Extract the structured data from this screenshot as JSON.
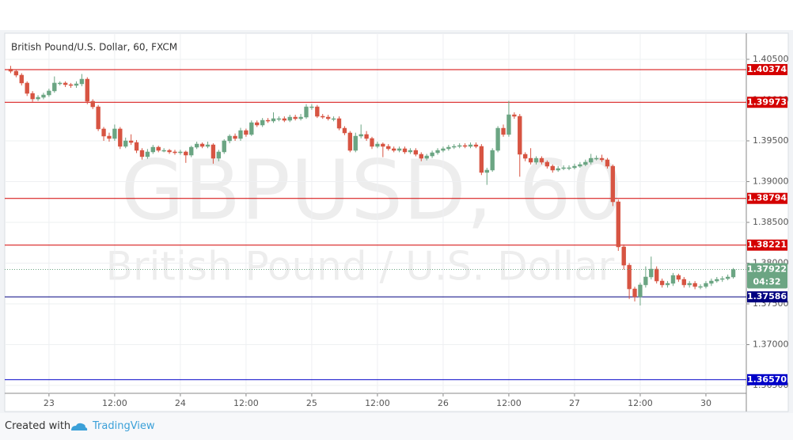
{
  "chart_data": {
    "type": "candlestick",
    "title": "British Pound/U.S. Dollar, 60, FXCM",
    "watermark": "GBPUSD, 60",
    "watermark_subtitle": "British Pound / U.S. Dollar",
    "up_color": "#6ba583",
    "down_color": "#d75442",
    "grid": true,
    "categories": [
      null,
      null,
      null,
      null,
      null,
      null,
      null,
      "23",
      null,
      null,
      null,
      null,
      null,
      null,
      null,
      null,
      null,
      null,
      null,
      "12:00",
      null,
      null,
      null,
      null,
      null,
      null,
      null,
      null,
      null,
      null,
      null,
      "24",
      null,
      null,
      null,
      null,
      null,
      null,
      null,
      null,
      null,
      null,
      null,
      "12:00",
      null,
      null,
      null,
      null,
      null,
      null,
      null,
      null,
      null,
      null,
      null,
      "25",
      null,
      null,
      null,
      null,
      null,
      null,
      null,
      null,
      null,
      null,
      null,
      "12:00",
      null,
      null,
      null,
      null,
      null,
      null,
      null,
      null,
      null,
      null,
      null,
      "26",
      null,
      null,
      null,
      null,
      null,
      null,
      null,
      null,
      null,
      null,
      null,
      "12:00",
      null,
      null,
      null,
      null,
      null,
      null,
      null,
      null,
      null,
      null,
      null,
      "27",
      null,
      null,
      null,
      null,
      null,
      null,
      null,
      null,
      null,
      null,
      null,
      "12:00",
      null,
      null,
      null,
      null,
      null,
      null,
      null,
      null,
      null,
      null,
      null,
      "30",
      null,
      null,
      null,
      null,
      null
    ],
    "open": [
      1.4038,
      1.40354,
      1.40306,
      1.40209,
      1.40082,
      1.40014,
      1.40034,
      1.40063,
      1.40112,
      1.40209,
      1.40209,
      1.40189,
      1.4018,
      1.40199,
      1.40257,
      1.39985,
      1.39917,
      1.39646,
      1.39558,
      1.39529,
      1.39646,
      1.39432,
      1.395,
      1.3948,
      1.39383,
      1.39306,
      1.39364,
      1.39422,
      1.39383,
      1.39383,
      1.39364,
      1.39354,
      1.39364,
      1.39325,
      1.39422,
      1.39461,
      1.39432,
      1.39451,
      1.39286,
      1.39364,
      1.395,
      1.39558,
      1.39529,
      1.39626,
      1.39578,
      1.39723,
      1.39694,
      1.39752,
      1.39743,
      1.39772,
      1.39772,
      1.39752,
      1.39791,
      1.39772,
      1.39791,
      1.39917,
      1.39917,
      1.39801,
      1.39791,
      1.39772,
      1.39772,
      1.39655,
      1.39597,
      1.39383,
      1.39558,
      1.39578,
      1.39529,
      1.39432,
      1.39461,
      1.39432,
      1.39403,
      1.39383,
      1.39403,
      1.39364,
      1.39383,
      1.39335,
      1.39286,
      1.39315,
      1.39354,
      1.39383,
      1.39403,
      1.39422,
      1.39432,
      1.39442,
      1.39432,
      1.39451,
      1.39432,
      1.39112,
      1.39141,
      1.39383,
      1.39655,
      1.39578,
      1.3982,
      1.39801,
      1.39335,
      1.39286,
      1.39238,
      1.39286,
      1.39238,
      1.39189,
      1.39141,
      1.3916,
      1.3917,
      1.3917,
      1.39189,
      1.39209,
      1.39238,
      1.39286,
      1.39286,
      1.39267,
      1.39189,
      1.38752,
      1.38199,
      1.37975,
      1.37684,
      1.37587,
      1.37733,
      1.3783,
      1.37927,
      1.37781,
      1.37733,
      1.37752,
      1.37849,
      1.37801,
      1.37733,
      1.37752,
      1.37713,
      1.37713,
      1.37752,
      1.37781,
      1.37801,
      1.3781,
      1.3783
    ],
    "high": [
      1.4042,
      1.4038,
      1.4033,
      1.4023,
      1.4011,
      1.4006,
      1.4009,
      1.4014,
      1.4029,
      1.4023,
      1.4023,
      1.4021,
      1.4023,
      1.4032,
      1.4028,
      1.4001,
      1.3994,
      1.3967,
      1.396,
      1.397,
      1.3967,
      1.3954,
      1.3958,
      1.3951,
      1.3941,
      1.394,
      1.3945,
      1.3944,
      1.3941,
      1.394,
      1.3939,
      1.3939,
      1.3938,
      1.3944,
      1.3949,
      1.3948,
      1.3949,
      1.3947,
      1.3939,
      1.3952,
      1.3958,
      1.3959,
      1.3966,
      1.3965,
      1.3975,
      1.3975,
      1.3978,
      1.3978,
      1.3985,
      1.398,
      1.398,
      1.3982,
      1.3982,
      1.3983,
      1.3995,
      1.3995,
      1.3994,
      1.3983,
      1.3982,
      1.398,
      1.398,
      1.3968,
      1.3962,
      1.396,
      1.397,
      1.3962,
      1.3955,
      1.3949,
      1.3948,
      1.3946,
      1.3943,
      1.3943,
      1.3943,
      1.3941,
      1.3941,
      1.3936,
      1.3934,
      1.3938,
      1.3941,
      1.3943,
      1.3945,
      1.3946,
      1.3947,
      1.3947,
      1.3948,
      1.3948,
      1.3946,
      1.3917,
      1.3941,
      1.3968,
      1.397,
      1.3999,
      1.3985,
      1.3983,
      1.3936,
      1.3941,
      1.3931,
      1.3931,
      1.3926,
      1.3921,
      1.3919,
      1.392,
      1.392,
      1.3922,
      1.3924,
      1.3927,
      1.3934,
      1.3932,
      1.3933,
      1.3929,
      1.3921,
      1.3878,
      1.3823,
      1.38,
      1.3771,
      1.3776,
      1.3796,
      1.3808,
      1.3796,
      1.3781,
      1.3778,
      1.3788,
      1.3787,
      1.3783,
      1.3778,
      1.3778,
      1.3774,
      1.3778,
      1.3781,
      1.3783,
      1.3784,
      1.3786,
      1.3794
    ],
    "low": [
      1.4033,
      1.4028,
      1.4018,
      1.4005,
      1.3998,
      1.3999,
      1.4001,
      1.4004,
      1.4009,
      1.4018,
      1.4016,
      1.4015,
      1.4015,
      1.4017,
      1.3995,
      1.3989,
      1.3962,
      1.395,
      1.3949,
      1.395,
      1.394,
      1.3941,
      1.3945,
      1.3935,
      1.3927,
      1.3928,
      1.3934,
      1.3936,
      1.3936,
      1.3934,
      1.3933,
      1.3933,
      1.3923,
      1.393,
      1.394,
      1.3941,
      1.3941,
      1.3922,
      1.3925,
      1.3934,
      1.3947,
      1.395,
      1.395,
      1.3955,
      1.3956,
      1.3967,
      1.3967,
      1.3972,
      1.3972,
      1.3974,
      1.3973,
      1.3973,
      1.3975,
      1.3975,
      1.3977,
      1.3988,
      1.3978,
      1.3977,
      1.3975,
      1.3974,
      1.3963,
      1.3957,
      1.3936,
      1.3936,
      1.3953,
      1.395,
      1.394,
      1.3941,
      1.393,
      1.3938,
      1.3936,
      1.3936,
      1.3934,
      1.3934,
      1.3931,
      1.3925,
      1.3926,
      1.3929,
      1.3933,
      1.3936,
      1.3938,
      1.394,
      1.3941,
      1.3941,
      1.3941,
      1.3941,
      1.3908,
      1.3896,
      1.3912,
      1.3936,
      1.3955,
      1.3955,
      1.3977,
      1.3906,
      1.3925,
      1.3921,
      1.3921,
      1.3921,
      1.3916,
      1.3911,
      1.3912,
      1.3914,
      1.3914,
      1.3915,
      1.3917,
      1.3919,
      1.3921,
      1.3926,
      1.3924,
      1.3916,
      1.387,
      1.3815,
      1.3792,
      1.3756,
      1.3753,
      1.3748,
      1.377,
      1.378,
      1.3775,
      1.377,
      1.377,
      1.3772,
      1.3777,
      1.377,
      1.377,
      1.3768,
      1.3768,
      1.3769,
      1.3772,
      1.3776,
      1.3777,
      1.3779,
      1.3781
    ],
    "close": [
      1.40354,
      1.40306,
      1.40209,
      1.40082,
      1.40014,
      1.40034,
      1.40063,
      1.40112,
      1.40209,
      1.40209,
      1.40189,
      1.4018,
      1.40199,
      1.40257,
      1.39985,
      1.39917,
      1.39646,
      1.39558,
      1.39529,
      1.39646,
      1.39432,
      1.395,
      1.3948,
      1.39383,
      1.39306,
      1.39364,
      1.39422,
      1.39383,
      1.39383,
      1.39364,
      1.39354,
      1.39364,
      1.39325,
      1.39422,
      1.39461,
      1.39432,
      1.39451,
      1.39286,
      1.39364,
      1.395,
      1.39558,
      1.39529,
      1.39626,
      1.39578,
      1.39723,
      1.39694,
      1.39752,
      1.39743,
      1.39772,
      1.39772,
      1.39752,
      1.39791,
      1.39772,
      1.39791,
      1.39917,
      1.39917,
      1.39801,
      1.39791,
      1.39772,
      1.39772,
      1.39655,
      1.39597,
      1.39383,
      1.39558,
      1.39578,
      1.39529,
      1.39432,
      1.39461,
      1.39432,
      1.39403,
      1.39383,
      1.39403,
      1.39364,
      1.39383,
      1.39335,
      1.39286,
      1.39315,
      1.39354,
      1.39383,
      1.39403,
      1.39422,
      1.39432,
      1.39442,
      1.39432,
      1.39451,
      1.39432,
      1.39112,
      1.39141,
      1.39383,
      1.39655,
      1.39578,
      1.3982,
      1.39801,
      1.39335,
      1.39286,
      1.39238,
      1.39286,
      1.39238,
      1.39189,
      1.39141,
      1.3916,
      1.3917,
      1.3917,
      1.39189,
      1.39209,
      1.39238,
      1.39286,
      1.39286,
      1.39267,
      1.39189,
      1.38752,
      1.38199,
      1.37975,
      1.37684,
      1.37587,
      1.37733,
      1.3783,
      1.37927,
      1.37781,
      1.37733,
      1.37752,
      1.37849,
      1.37801,
      1.37733,
      1.37752,
      1.37713,
      1.37713,
      1.37752,
      1.37781,
      1.37801,
      1.3781,
      1.3783,
      1.37922
    ],
    "ylim": [
      1.36403,
      1.4082
    ],
    "yticks": [
      {
        "value": 1.365,
        "label": "1.36500"
      },
      {
        "value": 1.37,
        "label": "1.37000"
      },
      {
        "value": 1.375,
        "label": "1.37500"
      },
      {
        "value": 1.38,
        "label": "1.38000"
      },
      {
        "value": 1.385,
        "label": "1.38500"
      },
      {
        "value": 1.39,
        "label": "1.39000"
      },
      {
        "value": 1.395,
        "label": "1.39500"
      },
      {
        "value": 1.4,
        "label": "1.40000"
      },
      {
        "value": 1.405,
        "label": "1.40500"
      }
    ],
    "levels": [
      {
        "value": 1.40374,
        "label": "1.40374",
        "color": "#d40000"
      },
      {
        "value": 1.39973,
        "label": "1.39973",
        "color": "#d40000"
      },
      {
        "value": 1.38794,
        "label": "1.38794",
        "color": "#d40000"
      },
      {
        "value": 1.38221,
        "label": "1.38221",
        "color": "#d40000"
      },
      {
        "value": 1.37586,
        "label": "1.37586",
        "color": "#000080"
      },
      {
        "value": 1.3657,
        "label": "1.36570",
        "color": "#0000c8"
      }
    ],
    "last_price": {
      "value": 1.37922,
      "label": "1.37922",
      "countdown": "04:32",
      "color": "#6ba583"
    }
  },
  "footer": {
    "prefix": "Created with",
    "brand": "TradingView"
  }
}
